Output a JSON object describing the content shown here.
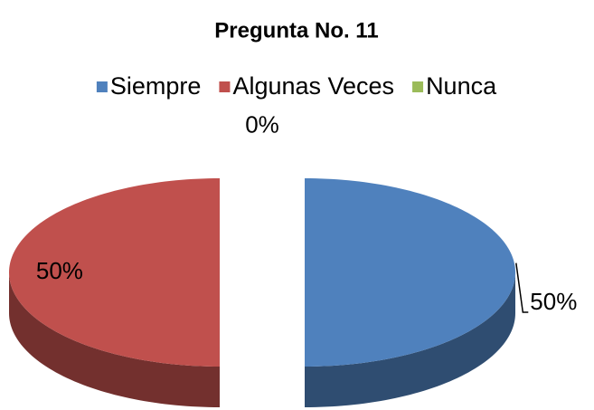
{
  "chart_data": {
    "type": "pie3d",
    "title": "Pregunta No. 11",
    "categories": [
      "Siempre",
      "Algunas Veces",
      "Nunca"
    ],
    "values": [
      50,
      50,
      0
    ],
    "value_labels": [
      "50%",
      "50%",
      "0%"
    ],
    "colors": [
      "#4f81bd",
      "#c0504d",
      "#9bbb59"
    ],
    "legend": "top"
  }
}
